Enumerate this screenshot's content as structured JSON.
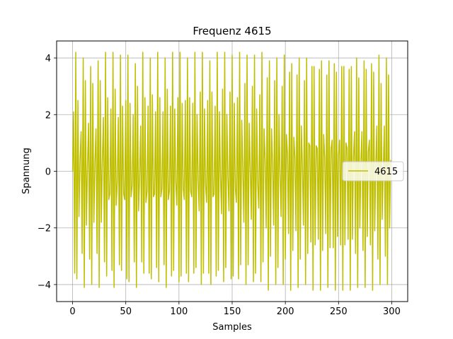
{
  "chart_data": {
    "type": "line",
    "title": "Frequenz 4615",
    "xlabel": "Samples",
    "ylabel": "Spannung",
    "xlim": [
      -15,
      315
    ],
    "ylim": [
      -4.6,
      4.6
    ],
    "xticks": [
      0,
      50,
      100,
      150,
      200,
      250,
      300
    ],
    "yticks": [
      -4,
      -2,
      0,
      2,
      4
    ],
    "grid": true,
    "legend": {
      "position": "center-right",
      "entries": [
        "4615"
      ]
    },
    "series": [
      {
        "name": "4615",
        "color": "#bfbf00",
        "x_start": 0,
        "x_step": 1,
        "n_points": 300,
        "values": [
          0.0,
          2.1,
          -3.6,
          4.2,
          -3.8,
          2.5,
          -1.6,
          0.4,
          1.4,
          -2.9,
          4.0,
          -4.1,
          3.2,
          -1.9,
          0.2,
          1.7,
          -3.1,
          3.7,
          -4.0,
          3.1,
          -1.8,
          0.3,
          1.5,
          -2.9,
          3.9,
          -4.1,
          3.2,
          -1.8,
          0.4,
          1.9,
          -3.2,
          4.2,
          -3.7,
          2.6,
          -1.0,
          -0.8,
          2.2,
          -3.5,
          4.2,
          -4.1,
          2.9,
          -1.2,
          -0.4,
          1.9,
          -3.3,
          4.1,
          -3.5,
          2.3,
          -0.8,
          -1.0,
          2.5,
          -3.8,
          4.1,
          -3.9,
          2.4,
          -0.9,
          -0.5,
          2.0,
          -3.2,
          3.8,
          -4.1,
          3.0,
          -1.4,
          -0.2,
          1.6,
          -3.2,
          4.2,
          -3.6,
          2.6,
          -1.1,
          -0.7,
          2.3,
          -3.6,
          4.0,
          -3.8,
          2.7,
          -0.9,
          -0.8,
          2.1,
          -3.4,
          4.2,
          -3.9,
          2.6,
          -0.9,
          -0.6,
          2.1,
          -3.3,
          4.0,
          -4.1,
          2.9,
          -1.0,
          -0.7,
          2.3,
          -3.7,
          4.2,
          -3.5,
          2.2,
          -0.4,
          -1.2,
          2.6,
          -3.9,
          4.2,
          -3.7,
          2.4,
          -0.6,
          -1.0,
          2.5,
          -3.6,
          4.0,
          -3.9,
          2.6,
          -0.7,
          -0.9,
          2.4,
          -3.6,
          4.2,
          -3.4,
          2.0,
          -0.3,
          -1.4,
          2.8,
          -4.0,
          4.2,
          -3.6,
          2.2,
          -0.5,
          -1.1,
          2.5,
          -3.6,
          3.9,
          -4.0,
          2.8,
          -0.9,
          -0.8,
          2.3,
          -3.7,
          4.2,
          -3.5,
          2.1,
          -0.2,
          -1.5,
          2.9,
          -3.9,
          4.2,
          -3.4,
          2.0,
          -0.2,
          -1.4,
          2.8,
          -3.8,
          4.1,
          -3.7,
          2.4,
          -0.6,
          -1.1,
          2.6,
          -3.8,
          4.2,
          -3.3,
          1.8,
          0.1,
          -1.8,
          3.1,
          -4.0,
          4.1,
          -3.3,
          1.7,
          0.1,
          -1.7,
          3.0,
          -3.9,
          4.1,
          -3.6,
          2.2,
          -0.4,
          -1.3,
          2.7,
          -3.9,
          4.2,
          -3.2,
          1.5,
          0.4,
          -2.0,
          3.3,
          -4.2,
          3.9,
          -3.0,
          1.5,
          0.3,
          -1.9,
          3.2,
          -4.0,
          4.0,
          -3.4,
          2.0,
          -0.1,
          -1.6,
          3.0,
          -4.0,
          4.1,
          -3.1,
          1.3,
          0.6,
          -2.2,
          3.5,
          -4.2,
          3.8,
          -2.8,
          1.2,
          0.5,
          -2.1,
          3.4,
          -4.1,
          4.0,
          -3.1,
          1.6,
          0.2,
          -1.9,
          3.2,
          -4.0,
          4.0,
          -2.9,
          1.0,
          0.9,
          -2.5,
          3.7,
          -4.2,
          3.7,
          -2.6,
          0.9,
          0.8,
          -2.4,
          3.6,
          -4.2,
          3.9,
          -2.8,
          1.3,
          0.5,
          -2.2,
          3.4,
          -4.1,
          3.9,
          -2.7,
          0.8,
          1.1,
          -2.7,
          3.8,
          -4.2,
          3.5,
          -2.3,
          0.6,
          1.1,
          -2.6,
          3.7,
          -4.2,
          3.7,
          -2.6,
          1.0,
          0.8,
          -2.4,
          3.6,
          -4.2,
          3.7,
          -2.4,
          0.5,
          1.4,
          -2.9,
          4.0,
          -4.1,
          3.3,
          -2.0,
          0.3,
          1.4,
          -2.8,
          3.9,
          -4.1,
          3.6,
          -2.3,
          0.7,
          1.1,
          -2.6,
          3.8,
          -4.2,
          3.5,
          -2.1,
          0.2,
          1.6,
          -3.1,
          4.1,
          -4.0,
          3.1,
          -1.7,
          0.0,
          1.6,
          -3.0,
          4.0,
          -4.0,
          3.4,
          -2.0,
          0.4,
          1.4,
          -2.9,
          3.9,
          -4.2
        ]
      }
    ]
  }
}
